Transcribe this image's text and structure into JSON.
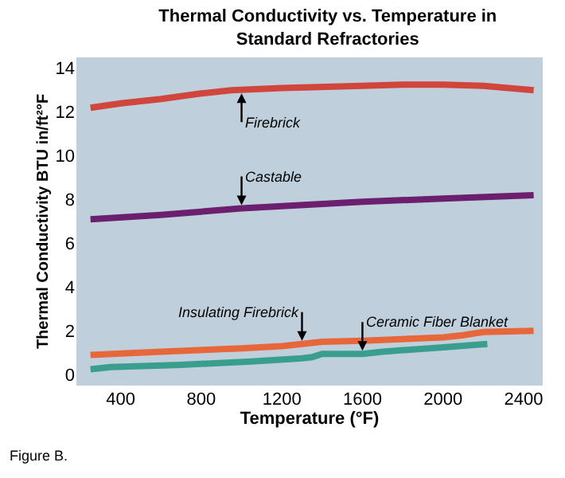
{
  "chart_data": {
    "type": "line",
    "title": "Thermal Conductivity vs. Temperature in\nStandard Refractories",
    "xlabel": "Temperature (°F)",
    "ylabel": "Thermal Conductivity BTU in/ft²°F",
    "xlim": [
      180,
      2495
    ],
    "xticks": [
      400,
      800,
      1200,
      1600,
      2000,
      2400
    ],
    "ylim": [
      -0.5,
      14.5
    ],
    "yticks": [
      0,
      2,
      4,
      6,
      8,
      10,
      12,
      14
    ],
    "grid": false,
    "marker": "none",
    "line_style": "solid",
    "series": [
      {
        "color": "#d0463c",
        "x": [
          250,
          400,
          600,
          800,
          950,
          1200,
          1600,
          1800,
          2000,
          2200,
          2450
        ],
        "values": [
          12.2,
          12.4,
          12.6,
          12.85,
          13.0,
          13.1,
          13.2,
          13.25,
          13.25,
          13.2,
          13.0
        ]
      },
      {
        "color": "#6b1f6e",
        "x": [
          250,
          600,
          1000,
          1600,
          2000,
          2450
        ],
        "values": [
          7.1,
          7.3,
          7.6,
          7.9,
          8.05,
          8.2
        ]
      },
      {
        "color": "#e8673a",
        "x": [
          250,
          600,
          1000,
          1200,
          1300,
          1400,
          1600,
          2000,
          2100,
          2200,
          2450
        ],
        "values": [
          0.9,
          1.05,
          1.2,
          1.3,
          1.4,
          1.5,
          1.55,
          1.7,
          1.8,
          1.95,
          2.0
        ]
      },
      {
        "color": "#3a9e8e",
        "x": [
          250,
          350,
          700,
          1050,
          1300,
          1350,
          1400,
          1600,
          1700,
          2000,
          2220
        ],
        "values": [
          0.25,
          0.35,
          0.45,
          0.6,
          0.75,
          0.8,
          0.95,
          0.95,
          1.05,
          1.25,
          1.4
        ]
      }
    ],
    "annotations": [
      {
        "text": "Firebrick",
        "x": 1000,
        "y": 13.0
      },
      {
        "text": "Castable",
        "x": 1000,
        "y": 7.6
      },
      {
        "text": "Insulating Firebrick",
        "x": 1300,
        "y": 1.4
      },
      {
        "text": "Ceramic Fiber Blanket",
        "x": 1600,
        "y": 0.95
      },
      "Figure B."
    ]
  }
}
